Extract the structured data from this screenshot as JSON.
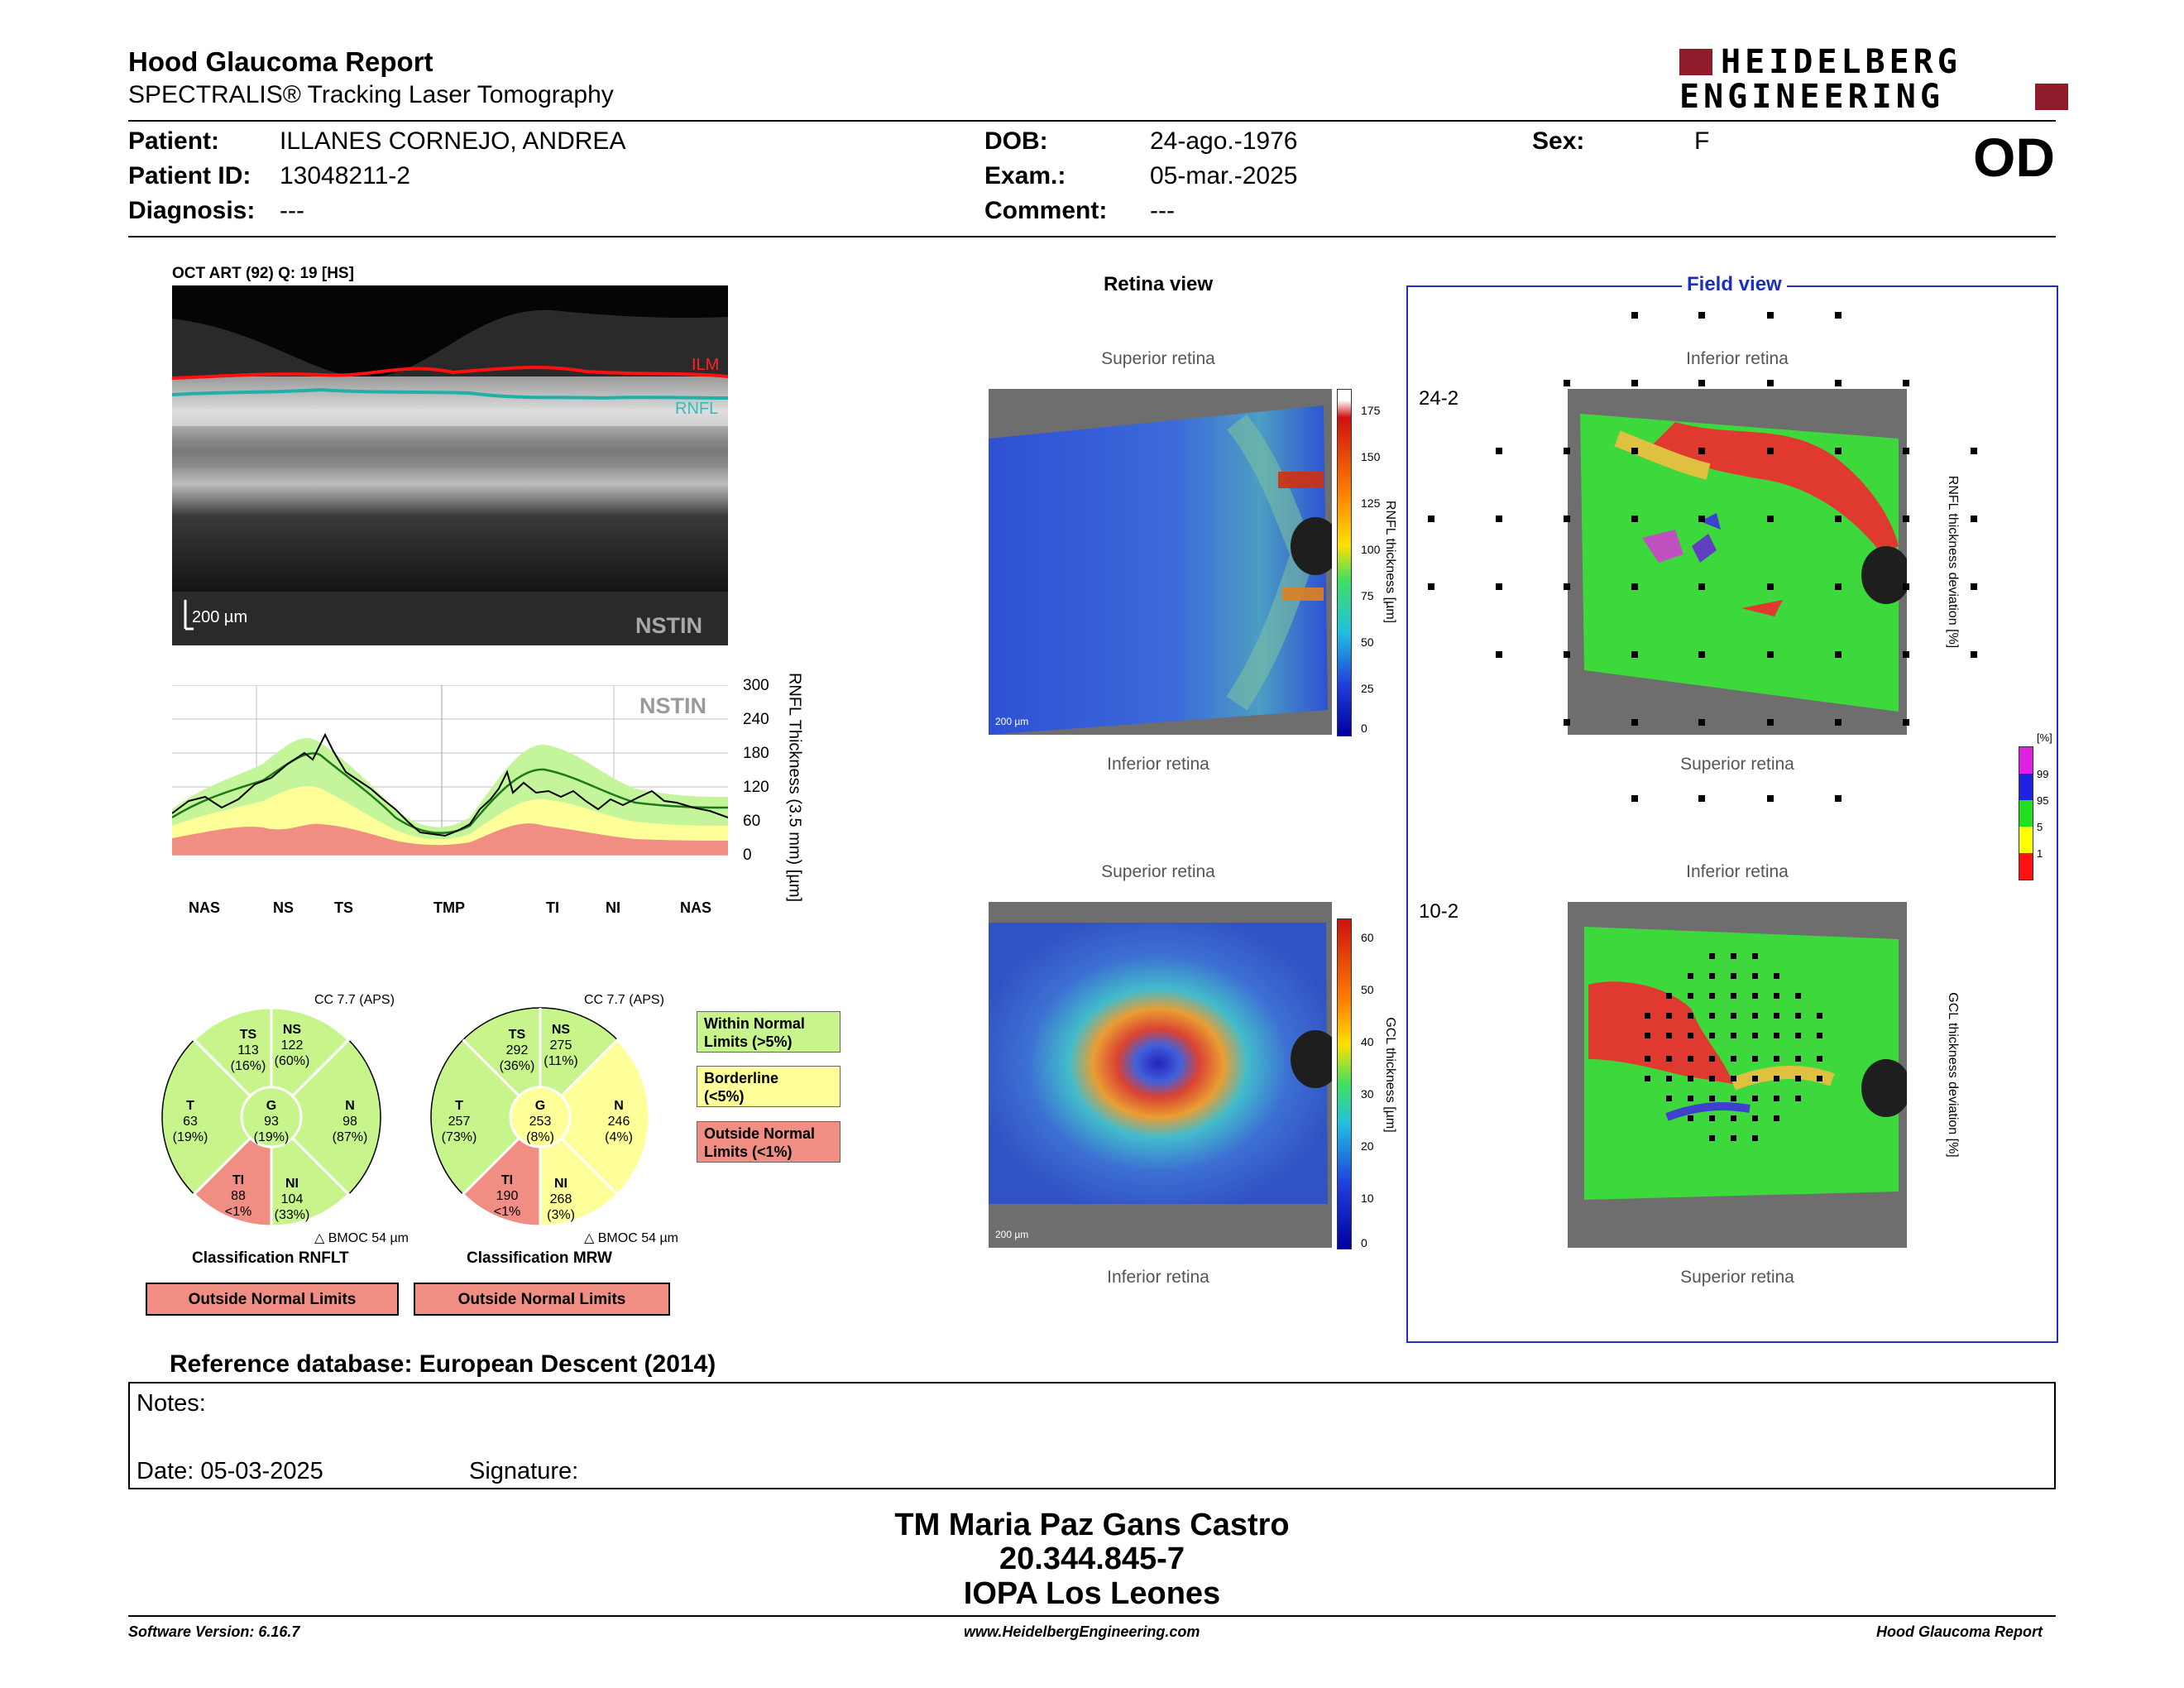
{
  "header": {
    "title": "Hood Glaucoma Report",
    "subtitle": "SPECTRALIS® Tracking Laser Tomography",
    "logo_line1": "HEIDELBERG",
    "logo_line2": "ENGINEERING",
    "eye": "OD"
  },
  "patient": {
    "patient_label": "Patient:",
    "patient_value": "ILLANES CORNEJO, ANDREA",
    "id_label": "Patient ID:",
    "id_value": "13048211-2",
    "diagnosis_label": "Diagnosis:",
    "diagnosis_value": "---",
    "dob_label": "DOB:",
    "dob_value": "24-ago.-1976",
    "exam_label": "Exam.:",
    "exam_value": "05-mar.-2025",
    "comment_label": "Comment:",
    "comment_value": "---",
    "sex_label": "Sex:",
    "sex_value": "F"
  },
  "oct": {
    "header": "OCT ART (92) Q: 19 [HS]",
    "ilm_label": "ILM",
    "rnfl_label": "RNFL",
    "scale": "200 µm",
    "nstin": "NSTIN"
  },
  "profile": {
    "nstin": "NSTIN",
    "y_axis_label": "RNFL Thickness (3.5 mm) [µm]",
    "y_ticks": [
      "300",
      "240",
      "180",
      "120",
      "60",
      "0"
    ],
    "segments": [
      "NAS",
      "NS",
      "TS",
      "TMP",
      "TI",
      "NI",
      "NAS"
    ]
  },
  "pie_rnflt": {
    "cc": "CC 7.7 (APS)",
    "TS": {
      "label": "TS",
      "value": "113",
      "pct": "(16%)"
    },
    "NS": {
      "label": "NS",
      "value": "122",
      "pct": "(60%)"
    },
    "T": {
      "label": "T",
      "value": "63",
      "pct": "(19%)"
    },
    "G": {
      "label": "G",
      "value": "93",
      "pct": "(19%)"
    },
    "N": {
      "label": "N",
      "value": "98",
      "pct": "(87%)"
    },
    "TI": {
      "label": "TI",
      "value": "88",
      "pct": "<1%"
    },
    "NI": {
      "label": "NI",
      "value": "104",
      "pct": "(33%)"
    },
    "bmo": "BMOC 54 µm",
    "classification": "Classification RNFLT",
    "result": "Outside Normal Limits"
  },
  "pie_mrw": {
    "cc": "CC 7.7 (APS)",
    "TS": {
      "label": "TS",
      "value": "292",
      "pct": "(36%)"
    },
    "NS": {
      "label": "NS",
      "value": "275",
      "pct": "(11%)"
    },
    "T": {
      "label": "T",
      "value": "257",
      "pct": "(73%)"
    },
    "G": {
      "label": "G",
      "value": "253",
      "pct": "(8%)"
    },
    "N": {
      "label": "N",
      "value": "246",
      "pct": "(4%)"
    },
    "TI": {
      "label": "TI",
      "value": "190",
      "pct": "<1%"
    },
    "NI": {
      "label": "NI",
      "value": "268",
      "pct": "(3%)"
    },
    "bmo": "BMOC 54 µm",
    "classification": "Classification MRW",
    "result": "Outside Normal Limits"
  },
  "legend": {
    "within_line1": "Within Normal",
    "within_line2": "Limits (>5%)",
    "borderline_line1": "Borderline",
    "borderline_line2": "(<5%)",
    "outside_line1": "Outside Normal",
    "outside_line2": "Limits (<1%)"
  },
  "retina_view": {
    "title": "Retina view",
    "superior": "Superior retina",
    "inferior": "Inferior retina",
    "rnfl_scale_label": "RNFL thickness [µm]",
    "rnfl_ticks": [
      "175",
      "150",
      "125",
      "100",
      "75",
      "50",
      "25",
      "0"
    ],
    "gcl_scale_label": "GCL thickness [µm]",
    "gcl_ticks": [
      "60",
      "50",
      "40",
      "30",
      "20",
      "10",
      "0"
    ],
    "scale": "200 µm"
  },
  "field_view": {
    "title": "Field view",
    "inferior": "Inferior retina",
    "superior": "Superior retina",
    "label_24": "24-2",
    "label_10": "10-2",
    "rnfl_dev_label": "RNFL thickness deviation [%]",
    "gcl_dev_label": "GCL thickness deviation [%]",
    "pct_header": "[%]",
    "pct_ticks": [
      "99",
      "95",
      "5",
      "1"
    ]
  },
  "reference_db": "Reference database: European Descent (2014)",
  "notes": {
    "notes_label": "Notes:",
    "date_label": "Date: 05-03-2025",
    "signature_label": "Signature:"
  },
  "stamp": {
    "line1": "TM Maria Paz Gans Castro",
    "line2": "20.344.845-7",
    "line3": "IOPA Los Leones"
  },
  "footer": {
    "software": "Software Version: 6.16.7",
    "website": "www.HeidelbergEngineering.com",
    "report": "Hood Glaucoma Report"
  },
  "colors": {
    "within": "#c7f58c",
    "borderline": "#ffff99",
    "outside": "#f08e84",
    "field_border": "#2030c0",
    "logo_red": "#8e1c2b"
  }
}
